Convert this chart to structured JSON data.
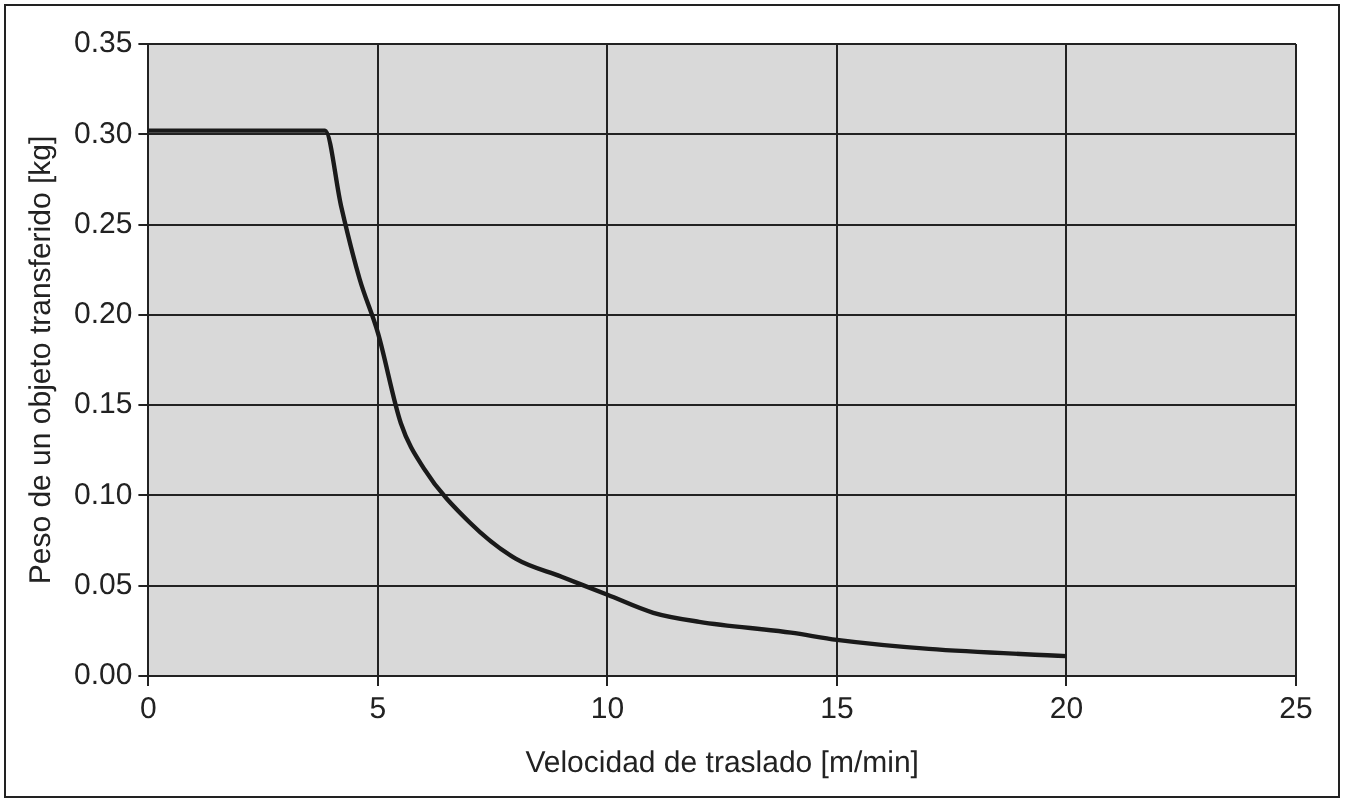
{
  "chart_data": {
    "type": "line",
    "xlabel": "Velocidad de traslado [m/min]",
    "ylabel": "Peso de un objeto transferido [kg]",
    "x": [
      0,
      3.85,
      4.2,
      4.6,
      5,
      5.5,
      6,
      7,
      8,
      9,
      10,
      11,
      12,
      14,
      15,
      17,
      20
    ],
    "series": [
      {
        "color": "#1a1a1a",
        "values": [
          0.302,
          0.302,
          0.26,
          0.22,
          0.19,
          0.14,
          0.115,
          0.085,
          0.065,
          0.055,
          0.045,
          0.035,
          0.03,
          0.024,
          0.02,
          0.015,
          0.011
        ]
      }
    ],
    "xlim": [
      0,
      25
    ],
    "xticks": [
      0,
      5,
      10,
      15,
      20,
      25
    ],
    "ylim": [
      0,
      0.35
    ],
    "yticks": [
      {
        "value": 0,
        "label": "0.00"
      },
      {
        "value": 0.05,
        "label": "0.05"
      },
      {
        "value": 0.1,
        "label": "0.10"
      },
      {
        "value": 0.15,
        "label": "0.15"
      },
      {
        "value": 0.2,
        "label": "0.20"
      },
      {
        "value": 0.25,
        "label": "0.25"
      },
      {
        "value": 0.3,
        "label": "0.30"
      },
      {
        "value": 0.35,
        "label": "0.35"
      }
    ],
    "grid": true,
    "legend": false,
    "marker": "none",
    "line_style": "solid"
  }
}
